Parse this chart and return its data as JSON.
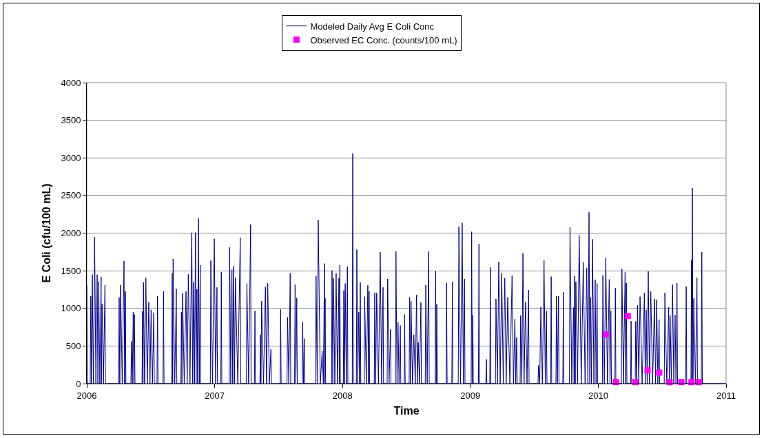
{
  "chart_data": {
    "type": "line",
    "xlabel": "Time",
    "ylabel": "E Coli (cfu/100 mL)",
    "xlim": [
      2006,
      2011
    ],
    "xticks": [
      2006,
      2007,
      2008,
      2009,
      2010,
      2011
    ],
    "ylim": [
      0,
      4000
    ],
    "yticks": [
      0,
      500,
      1000,
      1500,
      2000,
      2500,
      3000,
      3500,
      4000
    ],
    "grid": "y",
    "legend": "top",
    "series": [
      {
        "name": "Modeled Daily Avg E Coli Conc",
        "color": "#00008b",
        "marker": "none",
        "x": [
          2006.0,
          2006.004,
          2006.027,
          2006.031,
          2006.037,
          2006.043,
          2006.052,
          2006.061,
          2006.071,
          2006.081,
          2006.087,
          2006.093,
          2006.102,
          2006.112,
          2006.115,
          2006.119,
          2006.13,
          2006.142,
          2006.146,
          2006.249,
          2006.253,
          2006.258,
          2006.264,
          2006.277,
          2006.291,
          2006.296,
          2006.302,
          2006.306,
          2006.345,
          2006.349,
          2006.356,
          2006.363,
          2006.368,
          2006.373,
          2006.377,
          2006.432,
          2006.436,
          2006.44,
          2006.443,
          2006.452,
          2006.462,
          2006.473,
          2006.485,
          2006.494,
          2006.503,
          2006.513,
          2006.524,
          2006.528,
          2006.549,
          2006.553,
          2006.557,
          2006.596,
          2006.6,
          2006.604,
          2006.664,
          2006.668,
          2006.672,
          2006.675,
          2006.688,
          2006.7,
          2006.704,
          2006.736,
          2006.74,
          2006.744,
          2006.749,
          2006.762,
          2006.776,
          2006.785,
          2006.794,
          2006.807,
          2006.821,
          2006.828,
          2006.835,
          2006.842,
          2006.85,
          2006.855,
          2006.861,
          2006.867,
          2006.873,
          2006.88,
          2006.887,
          2006.891,
          2006.966,
          2006.97,
          2006.983,
          2006.997,
          2007.008,
          2007.018,
          2007.022,
          2007.048,
          2007.052,
          2007.056,
          2007.113,
          2007.117,
          2007.126,
          2007.135,
          2007.141,
          2007.148,
          2007.155,
          2007.162,
          2007.181,
          2007.2,
          2007.204,
          2007.248,
          2007.252,
          2007.266,
          2007.281,
          2007.285,
          2007.311,
          2007.315,
          2007.319,
          2007.354,
          2007.358,
          2007.362,
          2007.367,
          2007.382,
          2007.397,
          2007.406,
          2007.415,
          2007.428,
          2007.44,
          2007.444,
          2007.512,
          2007.516,
          2007.52,
          2007.566,
          2007.57,
          2007.58,
          2007.591,
          2007.595,
          2007.625,
          2007.629,
          2007.635,
          2007.642,
          2007.646,
          2007.684,
          2007.688,
          2007.695,
          2007.701,
          2007.705,
          2007.789,
          2007.793,
          2007.802,
          2007.81,
          2007.826,
          2007.841,
          2007.85,
          2007.859,
          2007.861,
          2007.864,
          2007.868,
          2007.914,
          2007.918,
          2007.924,
          2007.929,
          2007.94,
          2007.95,
          2007.961,
          2007.972,
          2007.975,
          2007.979,
          2007.983,
          2008.006,
          2008.01,
          2008.015,
          2008.021,
          2008.03,
          2008.038,
          2008.042,
          2008.076,
          2008.08,
          2008.084,
          2008.108,
          2008.112,
          2008.119,
          2008.127,
          2008.133,
          2008.139,
          2008.143,
          2008.169,
          2008.173,
          2008.186,
          2008.198,
          2008.203,
          2008.208,
          2008.212,
          2008.248,
          2008.252,
          2008.259,
          2008.267,
          2008.281,
          2008.295,
          2008.306,
          2008.317,
          2008.321,
          2008.349,
          2008.353,
          2008.364,
          2008.375,
          2008.379,
          2008.414,
          2008.418,
          2008.426,
          2008.434,
          2008.442,
          2008.452,
          2008.456,
          2008.482,
          2008.486,
          2008.49,
          2008.521,
          2008.525,
          2008.531,
          2008.536,
          2008.547,
          2008.558,
          2008.569,
          2008.579,
          2008.585,
          2008.592,
          2008.602,
          2008.613,
          2008.617,
          2008.647,
          2008.651,
          2008.662,
          2008.674,
          2008.678,
          2008.724,
          2008.728,
          2008.733,
          2008.737,
          2008.741,
          2008.81,
          2008.814,
          2008.818,
          2008.855,
          2008.859,
          2008.863,
          2008.905,
          2008.91,
          2008.923,
          2008.936,
          2008.945,
          2008.954,
          2008.958,
          2009.006,
          2009.01,
          2009.014,
          2009.019,
          2009.023,
          2009.063,
          2009.067,
          2009.071,
          2009.121,
          2009.125,
          2009.129,
          2009.152,
          2009.156,
          2009.16,
          2009.196,
          2009.2,
          2009.211,
          2009.222,
          2009.233,
          2009.245,
          2009.257,
          2009.269,
          2009.28,
          2009.292,
          2009.309,
          2009.326,
          2009.337,
          2009.348,
          2009.355,
          2009.362,
          2009.366,
          2009.389,
          2009.393,
          2009.402,
          2009.411,
          2009.42,
          2009.431,
          2009.443,
          2009.455,
          2009.459,
          2009.529,
          2009.533,
          2009.542,
          2009.551,
          2009.563,
          2009.576,
          2009.586,
          2009.595,
          2009.599,
          2009.628,
          2009.632,
          2009.636,
          2009.669,
          2009.673,
          2009.681,
          2009.689,
          2009.693,
          2009.723,
          2009.727,
          2009.731,
          2009.775,
          2009.779,
          2009.793,
          2009.807,
          2009.811,
          2009.815,
          2009.82,
          2009.825,
          2009.838,
          2009.851,
          2009.867,
          2009.883,
          2009.897,
          2009.91,
          2009.919,
          2009.928,
          2009.934,
          2009.94,
          2009.947,
          2009.955,
          2009.966,
          2009.976,
          2009.983,
          2009.991,
          2009.995,
          2010.032,
          2010.036,
          2010.047,
          2010.059,
          2010.072,
          2010.086,
          2010.092,
          2010.099,
          2010.103,
          2010.13,
          2010.134,
          2010.138,
          2010.181,
          2010.185,
          2010.197,
          2010.21,
          2010.215,
          2010.22,
          2010.224,
          2010.253,
          2010.257,
          2010.261,
          2010.289,
          2010.293,
          2010.3,
          2010.307,
          2010.317,
          2010.327,
          2010.343,
          2010.361,
          2010.368,
          2010.375,
          2010.383,
          2010.391,
          2010.401,
          2010.411,
          2010.425,
          2010.44,
          2010.448,
          2010.457,
          2010.466,
          2010.476,
          2010.48,
          2010.516,
          2010.521,
          2010.536,
          2010.551,
          2010.556,
          2010.562,
          2010.572,
          2010.581,
          2010.591,
          2010.601,
          2010.608,
          2010.616,
          2010.62,
          2010.683,
          2010.688,
          2010.692,
          2010.725,
          2010.729,
          2010.732,
          2010.736,
          2010.741,
          2010.747,
          2010.76,
          2010.772,
          2010.776,
          2010.806,
          2010.81,
          2010.814,
          2011.0
        ],
        "values": [
          1309,
          0,
          0,
          1162,
          0,
          1449,
          0,
          1947,
          0,
          1449,
          0,
          1355,
          0,
          1419,
          0,
          1062,
          0,
          1309,
          0,
          0,
          1147,
          0,
          1309,
          0,
          1629,
          0,
          1226,
          0,
          0,
          561,
          0,
          952,
          0,
          918,
          0,
          0,
          958,
          0,
          1345,
          0,
          1407,
          0,
          1080,
          0,
          979,
          0,
          943,
          0,
          0,
          1162,
          0,
          0,
          1224,
          0,
          0,
          1467,
          0,
          1657,
          0,
          1260,
          0,
          0,
          949,
          0,
          1199,
          0,
          1224,
          0,
          1453,
          0,
          2007,
          0,
          1345,
          0,
          2007,
          0,
          1254,
          0,
          2194,
          0,
          1574,
          0,
          0,
          1635,
          0,
          1925,
          0,
          1279,
          0,
          0,
          1483,
          0,
          0,
          1810,
          0,
          1513,
          0,
          1559,
          0,
          1407,
          0,
          1938,
          0,
          0,
          1330,
          0,
          2114,
          0,
          0,
          964,
          0,
          0,
          650,
          0,
          1096,
          0,
          1284,
          0,
          1336,
          0,
          455,
          0,
          0,
          986,
          0,
          0,
          881,
          0,
          1467,
          0,
          0,
          1315,
          0,
          1138,
          0,
          0,
          821,
          0,
          598,
          0,
          0,
          1431,
          0,
          2178,
          0,
          430,
          0,
          1596,
          0,
          1132,
          0,
          0,
          1504,
          0,
          1397,
          0,
          1467,
          0,
          1400,
          0,
          1574,
          0,
          0,
          1238,
          0,
          1330,
          0,
          1553,
          0,
          0,
          3060,
          0,
          0,
          1779,
          0,
          949,
          0,
          1345,
          0,
          0,
          1156,
          0,
          1306,
          0,
          1224,
          0,
          0,
          1208,
          0,
          1202,
          0,
          1748,
          0,
          1279,
          0,
          0,
          1391,
          0,
          720,
          0,
          0,
          1757,
          0,
          817,
          0,
          772,
          0,
          0,
          918,
          0,
          0,
          1147,
          0,
          1096,
          0,
          650,
          0,
          1178,
          0,
          546,
          0,
          1077,
          0,
          0,
          1309,
          0,
          1757,
          0,
          0,
          1498,
          0,
          1055,
          0,
          0,
          1339,
          0,
          0,
          1352,
          0,
          0,
          2084,
          0,
          2139,
          0,
          1391,
          0,
          0,
          2017,
          0,
          909,
          0,
          0,
          1855,
          0,
          0,
          323,
          0,
          0,
          1544,
          0,
          0,
          1126,
          0,
          1620,
          0,
          1467,
          0,
          1400,
          0,
          1147,
          0,
          1437,
          0,
          858,
          0,
          613,
          0,
          0,
          903,
          0,
          1733,
          0,
          1086,
          0,
          1245,
          0,
          0,
          241,
          0,
          1019,
          0,
          1635,
          0,
          964,
          0,
          0,
          1422,
          0,
          0,
          1162,
          0,
          1162,
          0,
          0,
          1217,
          0,
          0,
          2078,
          0,
          1010,
          0,
          1428,
          0,
          1355,
          0,
          1971,
          0,
          1614,
          0,
          1538,
          0,
          2276,
          0,
          1147,
          0,
          1919,
          0,
          1382,
          0,
          1330,
          0,
          0,
          1437,
          0,
          1672,
          0,
          1385,
          0,
          970,
          0,
          0,
          1270,
          0,
          0,
          1522,
          0,
          1480,
          0,
          1336,
          0,
          0,
          833,
          0,
          0,
          827,
          0,
          1041,
          0,
          1156,
          0,
          1208,
          0,
          979,
          0,
          1492,
          0,
          1224,
          0,
          1126,
          0,
          1117,
          0,
          851,
          0,
          0,
          1208,
          0,
          1016,
          0,
          903,
          0,
          1315,
          0,
          912,
          0,
          1336,
          0,
          0,
          1291,
          0,
          0,
          1641,
          0,
          2597,
          0,
          1132,
          0,
          1407,
          0,
          0,
          1748,
          0,
          0
        ]
      },
      {
        "name": "Observed EC Conc. (counts/100 mL)",
        "type": "scatter",
        "color": "#ff00ff",
        "marker": "square",
        "x": [
          2010.059,
          2010.138,
          2010.231,
          2010.29,
          2010.386,
          2010.477,
          2010.558,
          2010.65,
          2010.729,
          2010.785
        ],
        "values": [
          652,
          20,
          897,
          20,
          177,
          146,
          20,
          20,
          20,
          20
        ]
      }
    ]
  }
}
